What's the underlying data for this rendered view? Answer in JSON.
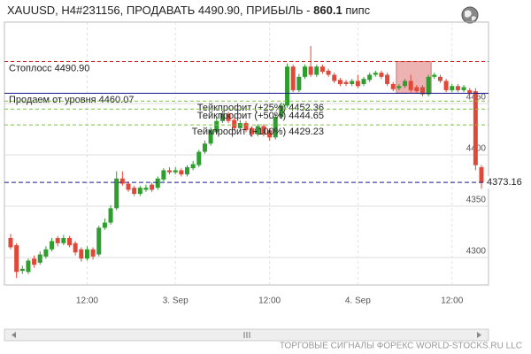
{
  "header": {
    "title": "XAUUSD, H4#231156, ПРОДАВАТЬ 4490.90, ПРИБЫЛЬ -",
    "profit": "860.1",
    "profit_unit": "пипс"
  },
  "footer": "ТОРГОВЫЕ СИГНАЛЫ ФОРЕКС WORLD-STOCKS.RU LLC",
  "chart_data": {
    "type": "candlestick",
    "categories": [
      null,
      null,
      null,
      null,
      null,
      null,
      null,
      null,
      null,
      null,
      null,
      null,
      null,
      "12:00",
      null,
      null,
      null,
      null,
      null,
      null,
      null,
      null,
      null,
      null,
      null,
      null,
      null,
      null,
      "3. Sep",
      null,
      null,
      null,
      null,
      null,
      null,
      null,
      null,
      null,
      null,
      null,
      null,
      null,
      null,
      null,
      "12:00",
      null,
      null,
      null,
      null,
      null,
      null,
      null,
      null,
      null,
      null,
      null,
      null,
      null,
      null,
      "4. Sep",
      null,
      null,
      null,
      null,
      null,
      null,
      null,
      null,
      null,
      null,
      null,
      null,
      null,
      null,
      null,
      "12:00",
      null,
      null,
      null,
      null,
      null
    ],
    "open": [
      4319,
      4312,
      4287,
      4286,
      4299,
      4295,
      4301,
      4308,
      4319,
      4314,
      4319,
      4314,
      4308,
      4299,
      4308,
      4303,
      4329,
      4334,
      4348,
      4377,
      4372,
      4368,
      4362,
      4366,
      4371,
      4368,
      4376,
      4385,
      4383,
      4385,
      4381,
      4387,
      4390,
      4403,
      4411,
      4422,
      4433,
      4440,
      4434,
      4426,
      4431,
      4426,
      4420,
      4428,
      4424,
      4417,
      4437,
      4448,
      4486,
      4463,
      4476,
      4486,
      4478,
      4486,
      4482,
      4478,
      4473,
      4471,
      4469,
      4472,
      4469,
      4473,
      4478,
      4480,
      4478,
      4469,
      4465,
      4467,
      4472,
      4466,
      4466,
      4459,
      4476,
      4476,
      4472,
      4463,
      4467,
      4463,
      4463,
      4462,
      4388
    ],
    "high": [
      4323,
      4314,
      4292,
      4299,
      4302,
      4306,
      4311,
      4319,
      4321,
      4322,
      4321,
      4316,
      4310,
      4311,
      4310,
      4331,
      4338,
      4351,
      4384,
      4384,
      4374,
      4370,
      4370,
      4371,
      4373,
      4379,
      4387,
      4388,
      4388,
      4387,
      4390,
      4394,
      4405,
      4414,
      4427,
      4436,
      4443,
      4442,
      4436,
      4434,
      4433,
      4428,
      4430,
      4430,
      4426,
      4440,
      4451,
      4489,
      4488,
      4479,
      4488,
      4506,
      4488,
      4488,
      4484,
      4480,
      4475,
      4473,
      4474,
      4478,
      4476,
      4480,
      4482,
      4482,
      4480,
      4471,
      4469,
      4474,
      4478,
      4468,
      4468,
      4478,
      4480,
      4478,
      4474,
      4469,
      4469,
      4468,
      4465,
      4465,
      4390
    ],
    "low": [
      4308,
      4280,
      4284,
      4284,
      4290,
      4293,
      4299,
      4306,
      4311,
      4312,
      4310,
      4302,
      4296,
      4297,
      4298,
      4301,
      4327,
      4332,
      4346,
      4370,
      4364,
      4360,
      4360,
      4364,
      4364,
      4366,
      4374,
      4381,
      4381,
      4379,
      4379,
      4385,
      4388,
      4401,
      4409,
      4420,
      4431,
      4431,
      4424,
      4424,
      4422,
      4418,
      4418,
      4418,
      4414,
      4415,
      4435,
      4446,
      4461,
      4461,
      4474,
      4476,
      4476,
      4479,
      4476,
      4470,
      4467,
      4467,
      4467,
      4465,
      4467,
      4471,
      4476,
      4474,
      4467,
      4462,
      4463,
      4465,
      4461,
      4460,
      4457,
      4457,
      4474,
      4470,
      4461,
      4461,
      4461,
      4461,
      4458,
      4385,
      4367
    ],
    "close": [
      4310,
      4286,
      4289,
      4297,
      4293,
      4303,
      4308,
      4316,
      4314,
      4319,
      4312,
      4305,
      4299,
      4308,
      4301,
      4329,
      4334,
      4348,
      4377,
      4372,
      4366,
      4362,
      4368,
      4368,
      4366,
      4377,
      4385,
      4383,
      4385,
      4381,
      4388,
      4391,
      4403,
      4411,
      4424,
      4433,
      4440,
      4433,
      4426,
      4431,
      4424,
      4420,
      4428,
      4420,
      4417,
      4437,
      4448,
      4486,
      4463,
      4476,
      4486,
      4478,
      4486,
      4481,
      4478,
      4472,
      4469,
      4469,
      4472,
      4467,
      4474,
      4478,
      4480,
      4476,
      4469,
      4464,
      4467,
      4472,
      4463,
      4462,
      4459,
      4476,
      4478,
      4472,
      4463,
      4467,
      4463,
      4466,
      4460,
      4390,
      4373.16
    ],
    "up_color": "#2e9e2e",
    "down_color": "#e0493a",
    "ylim": [
      4273.3,
      4529.3
    ],
    "yticks": [
      4300,
      4350,
      4400,
      4450
    ],
    "grid": true,
    "stop_loss": {
      "value": 4490.9,
      "label": "Стоплосс 4490.90",
      "color": "#d62728"
    },
    "entry": {
      "value": 4460.07,
      "label": "Продаем от уровня 4460.07",
      "color": "#1a1a8c"
    },
    "take_profits": [
      {
        "value": 4452.36,
        "label": "Тейкпрофит (+25%) 4452.36",
        "color": "#7cc242"
      },
      {
        "value": 4444.65,
        "label": "Тейкпрофит (+50%) 4444.65",
        "color": "#7cc242"
      },
      {
        "value": 4429.23,
        "label": "Тейкпрофит (+100%) 4429.23",
        "color": "#7cc242"
      }
    ],
    "current_price": 4373.16,
    "current_price_color": "#1a1a8c"
  }
}
